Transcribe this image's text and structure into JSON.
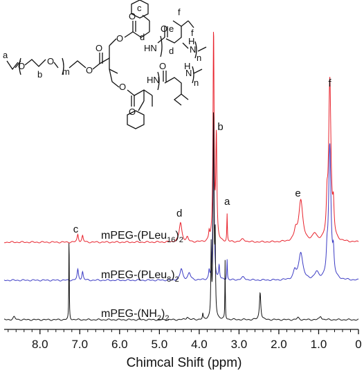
{
  "chart_data": {
    "type": "line",
    "xlabel": "Chimcal Shift (ppm)",
    "xlim": [
      8.9,
      0
    ],
    "x_ticks": [
      "8.0",
      "7.0",
      "6.0",
      "5.0",
      "4.0",
      "3.0",
      "2.0",
      "1.0",
      "0"
    ],
    "x_tick_values": [
      8,
      7,
      6,
      5,
      4,
      3,
      2,
      1,
      0
    ],
    "grid": false,
    "series": [
      {
        "name_parts": [
          "mPEG-(PLeu",
          "16",
          ")",
          "2"
        ],
        "color": "#e8212b",
        "peaks": [
          {
            "x": 7.05,
            "h": 11,
            "w": 0.02
          },
          {
            "x": 6.93,
            "h": 9,
            "w": 0.02
          },
          {
            "x": 4.47,
            "h": 28,
            "w": 0.04
          },
          {
            "x": 4.3,
            "h": 6,
            "w": 0.03
          },
          {
            "x": 3.75,
            "h": 12,
            "w": 0.015
          },
          {
            "x": 3.64,
            "h": 305,
            "w": 0.016
          },
          {
            "x": 3.57,
            "h": 150,
            "w": 0.016
          },
          {
            "x": 3.3,
            "h": 40,
            "w": 0.008
          },
          {
            "x": 2.9,
            "h": 4,
            "w": 0.06
          },
          {
            "x": 1.58,
            "h": 14,
            "w": 0.04
          },
          {
            "x": 1.45,
            "h": 60,
            "w": 0.06
          },
          {
            "x": 1.1,
            "h": 10,
            "w": 0.06
          },
          {
            "x": 0.79,
            "h": 40,
            "w": 0.02
          },
          {
            "x": 0.72,
            "h": 235,
            "w": 0.035
          },
          {
            "x": 0.63,
            "h": 40,
            "w": 0.02
          }
        ]
      },
      {
        "name_parts": [
          "mPEG-(PLeu",
          "8",
          ")",
          "2"
        ],
        "color": "#3b3bc4",
        "peaks": [
          {
            "x": 7.05,
            "h": 15,
            "w": 0.02
          },
          {
            "x": 6.93,
            "h": 12,
            "w": 0.02
          },
          {
            "x": 4.45,
            "h": 16,
            "w": 0.04
          },
          {
            "x": 4.25,
            "h": 10,
            "w": 0.04
          },
          {
            "x": 3.75,
            "h": 12,
            "w": 0.015
          },
          {
            "x": 3.64,
            "h": 230,
            "w": 0.016
          },
          {
            "x": 3.5,
            "h": 20,
            "w": 0.015
          },
          {
            "x": 3.3,
            "h": 30,
            "w": 0.008
          },
          {
            "x": 2.9,
            "h": 4,
            "w": 0.06
          },
          {
            "x": 1.6,
            "h": 12,
            "w": 0.04
          },
          {
            "x": 1.45,
            "h": 40,
            "w": 0.06
          },
          {
            "x": 1.05,
            "h": 10,
            "w": 0.06
          },
          {
            "x": 0.79,
            "h": 25,
            "w": 0.02
          },
          {
            "x": 0.72,
            "h": 195,
            "w": 0.035
          },
          {
            "x": 0.63,
            "h": 30,
            "w": 0.02
          }
        ]
      },
      {
        "name_parts": [
          "mPEG-(NH",
          "2",
          ")",
          "2"
        ],
        "color": "#111111",
        "peaks": [
          {
            "x": 8.65,
            "h": 4,
            "w": 0.03
          },
          {
            "x": 7.27,
            "h": 130,
            "w": 0.006
          },
          {
            "x": 4.3,
            "h": 4,
            "w": 0.03
          },
          {
            "x": 3.91,
            "h": 8,
            "w": 0.01
          },
          {
            "x": 3.7,
            "h": 100,
            "w": 0.01
          },
          {
            "x": 3.64,
            "h": 300,
            "w": 0.014
          },
          {
            "x": 3.6,
            "h": 110,
            "w": 0.01
          },
          {
            "x": 3.35,
            "h": 85,
            "w": 0.006
          },
          {
            "x": 2.47,
            "h": 40,
            "w": 0.02
          },
          {
            "x": 1.52,
            "h": 3,
            "w": 0.03
          },
          {
            "x": 0.95,
            "h": 5,
            "w": 0.03
          }
        ]
      }
    ],
    "annotations": [
      {
        "text": "c",
        "x": 7.1
      },
      {
        "text": "d",
        "x": 4.5
      },
      {
        "text": "b",
        "x": 3.64
      },
      {
        "text": "a",
        "x": 3.3
      },
      {
        "text": "e",
        "x": 1.45
      },
      {
        "text": "f",
        "x": 0.72
      }
    ]
  },
  "structure_labels": {
    "a": "a",
    "b": "b",
    "m": "m",
    "c": "c",
    "d": "d",
    "e": "e",
    "f": "f",
    "n": "n",
    "O": "O",
    "H": "H",
    "N": "N",
    "HN": "HN"
  }
}
